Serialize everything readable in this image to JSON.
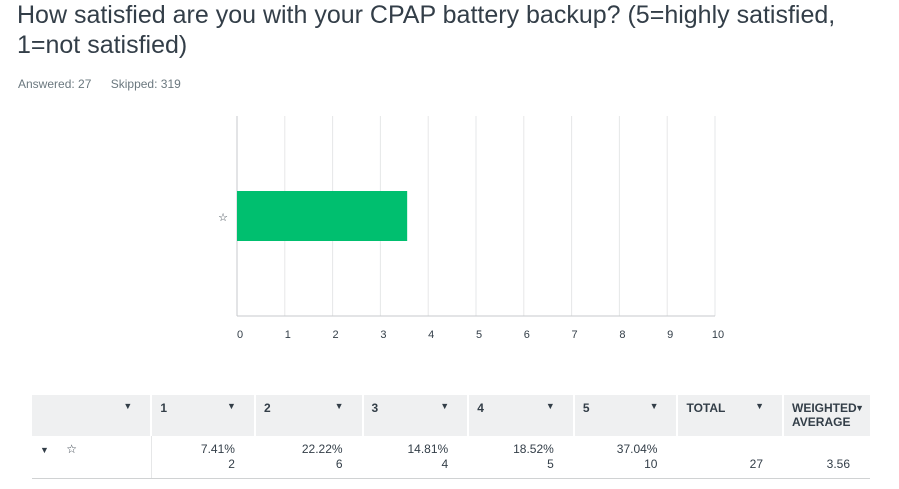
{
  "question": {
    "title": "How satisfied are you with your CPAP battery backup? (5=highly satisfied, 1=not satisfied)",
    "answered": "Answered: 27",
    "skipped": "Skipped: 319"
  },
  "chart_data": {
    "type": "bar",
    "orientation": "horizontal",
    "categories": [
      "☆"
    ],
    "values": [
      3.56
    ],
    "xlim": [
      0,
      10
    ],
    "xticks": [
      "0",
      "1",
      "2",
      "3",
      "4",
      "5",
      "6",
      "7",
      "8",
      "9",
      "10"
    ],
    "bar_color": "#00bf6f",
    "grid": true
  },
  "table": {
    "headers": [
      "1",
      "2",
      "3",
      "4",
      "5",
      "TOTAL",
      "WEIGHTED AVERAGE"
    ],
    "row": {
      "label": "☆",
      "cells": [
        {
          "pct": "7.41%",
          "count": "2"
        },
        {
          "pct": "22.22%",
          "count": "6"
        },
        {
          "pct": "14.81%",
          "count": "4"
        },
        {
          "pct": "18.52%",
          "count": "5"
        },
        {
          "pct": "37.04%",
          "count": "10"
        }
      ],
      "total": "27",
      "weighted_average": "3.56"
    }
  }
}
